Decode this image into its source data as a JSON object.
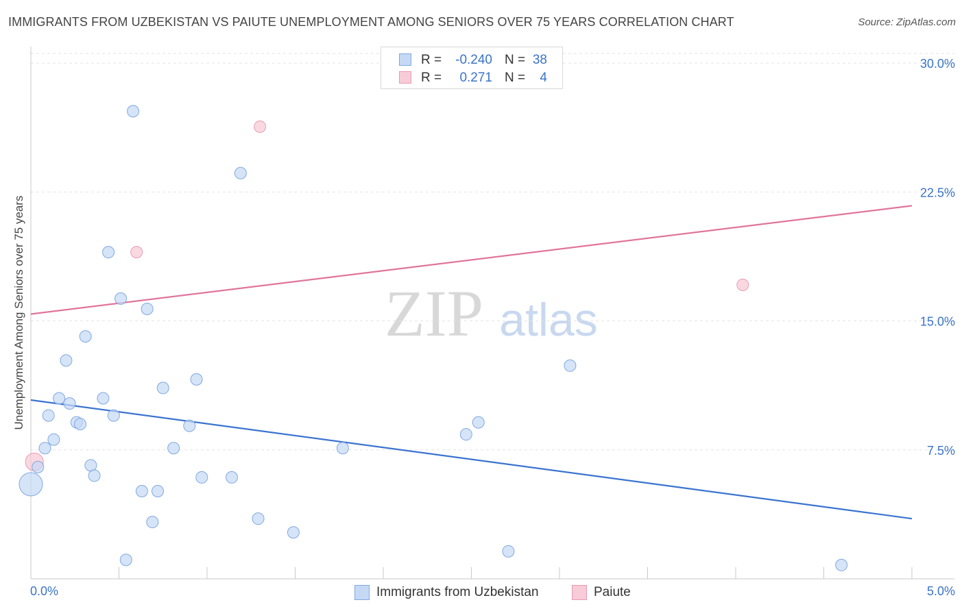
{
  "title": "IMMIGRANTS FROM UZBEKISTAN VS PAIUTE UNEMPLOYMENT AMONG SENIORS OVER 75 YEARS CORRELATION CHART",
  "source": "Source: ZipAtlas.com",
  "watermark": {
    "zip": "ZIP",
    "atlas": "atlas"
  },
  "colors": {
    "blue_fill": "#c5d9f5",
    "blue_stroke": "#7fa8e0",
    "blue_line": "#3a73d0",
    "pink_fill": "#f8cbd8",
    "pink_stroke": "#e99ab2",
    "pink_line": "#e0749a",
    "axis_text": "#3a73c8",
    "grid": "#e3e3e3"
  },
  "legend_top": {
    "rows": [
      {
        "series": "Immigrants from Uzbekistan",
        "r_label": "R =",
        "r_value": "-0.240",
        "n_label": "N =",
        "n_value": "38"
      },
      {
        "series": "Paiute",
        "r_label": "R =",
        "r_value": "0.271",
        "n_label": "N =",
        "n_value": "4"
      }
    ]
  },
  "legend_bottom": {
    "items": [
      "Immigrants from Uzbekistan",
      "Paiute"
    ]
  },
  "chart_data": {
    "type": "scatter",
    "title": "IMMIGRANTS FROM UZBEKISTAN VS PAIUTE UNEMPLOYMENT AMONG SENIORS OVER 75 YEARS CORRELATION CHART",
    "xlabel": "",
    "ylabel": "Unemployment Among Seniors over 75 years",
    "xlim": [
      0,
      5
    ],
    "ylim": [
      0,
      30.8
    ],
    "x_tick_labels": [
      "0.0%",
      "5.0%"
    ],
    "y_ticks": [
      7.5,
      15.0,
      22.5,
      30.0
    ],
    "y_tick_labels": [
      "7.5%",
      "15.0%",
      "22.5%",
      "30.0%"
    ],
    "grid": true,
    "series": [
      {
        "name": "Immigrants from Uzbekistan",
        "points": [
          {
            "x": 0.0,
            "y": 5.5,
            "big": true
          },
          {
            "x": 0.04,
            "y": 6.5,
            "big": false
          },
          {
            "x": 0.08,
            "y": 7.6
          },
          {
            "x": 0.1,
            "y": 9.5
          },
          {
            "x": 0.13,
            "y": 8.1
          },
          {
            "x": 0.16,
            "y": 10.5
          },
          {
            "x": 0.2,
            "y": 12.7
          },
          {
            "x": 0.22,
            "y": 10.2
          },
          {
            "x": 0.26,
            "y": 9.1
          },
          {
            "x": 0.28,
            "y": 9.0
          },
          {
            "x": 0.31,
            "y": 14.1
          },
          {
            "x": 0.34,
            "y": 6.6
          },
          {
            "x": 0.36,
            "y": 6.0
          },
          {
            "x": 0.41,
            "y": 10.5
          },
          {
            "x": 0.44,
            "y": 19.0
          },
          {
            "x": 0.47,
            "y": 9.5
          },
          {
            "x": 0.51,
            "y": 16.3
          },
          {
            "x": 0.54,
            "y": 1.1
          },
          {
            "x": 0.58,
            "y": 27.2
          },
          {
            "x": 0.63,
            "y": 5.1
          },
          {
            "x": 0.66,
            "y": 15.7
          },
          {
            "x": 0.69,
            "y": 3.3
          },
          {
            "x": 0.72,
            "y": 5.1
          },
          {
            "x": 0.75,
            "y": 11.1
          },
          {
            "x": 0.81,
            "y": 7.6
          },
          {
            "x": 0.9,
            "y": 8.9
          },
          {
            "x": 0.94,
            "y": 11.6
          },
          {
            "x": 0.97,
            "y": 5.9
          },
          {
            "x": 1.14,
            "y": 5.9
          },
          {
            "x": 1.19,
            "y": 23.6
          },
          {
            "x": 1.29,
            "y": 3.5
          },
          {
            "x": 1.49,
            "y": 2.7
          },
          {
            "x": 1.77,
            "y": 7.6
          },
          {
            "x": 2.47,
            "y": 8.4
          },
          {
            "x": 2.54,
            "y": 9.1
          },
          {
            "x": 2.71,
            "y": 1.6
          },
          {
            "x": 3.06,
            "y": 12.4
          },
          {
            "x": 4.6,
            "y": 0.8
          }
        ],
        "trend": {
          "x": [
            0,
            5
          ],
          "y": [
            10.4,
            3.5
          ]
        }
      },
      {
        "name": "Paiute",
        "points": [
          {
            "x": 0.02,
            "y": 6.8,
            "big": true
          },
          {
            "x": 0.6,
            "y": 19.0
          },
          {
            "x": 1.3,
            "y": 26.3
          },
          {
            "x": 4.04,
            "y": 17.1
          }
        ],
        "trend": {
          "x": [
            0,
            5
          ],
          "y": [
            15.4,
            21.7
          ]
        }
      }
    ]
  }
}
